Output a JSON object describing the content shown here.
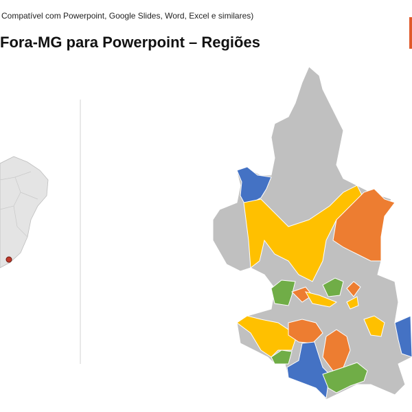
{
  "header": {
    "subtitle": "Compatível com Powerpoint, Google Slides, Word, Excel e similares)",
    "title": "Fora-MG para Powerpoint – Regiões"
  }
}
